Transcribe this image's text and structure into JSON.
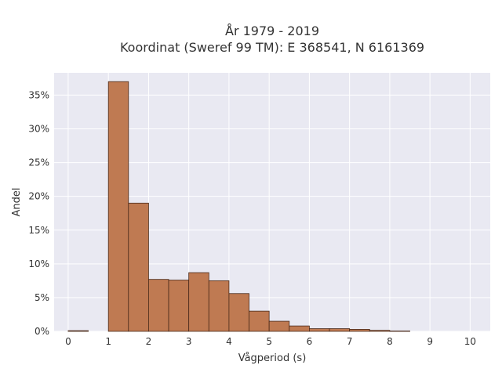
{
  "chart_data": {
    "type": "bar",
    "title": "År 1979 - 2019",
    "subtitle": "Koordinat (Sweref 99 TM): E 368541, N 6161369",
    "xlabel": "Vågperiod (s)",
    "ylabel": "Andel",
    "bin_width": 0.5,
    "xlim": [
      -0.35,
      10.5
    ],
    "ylim": [
      0,
      38.3
    ],
    "xticks": [
      0,
      1,
      2,
      3,
      4,
      5,
      6,
      7,
      8,
      9,
      10
    ],
    "yticks": [
      0,
      5,
      10,
      15,
      20,
      25,
      30,
      35
    ],
    "ytick_suffix": "%",
    "grid": true,
    "bin_starts": [
      0,
      1,
      1.5,
      2,
      2.5,
      3,
      3.5,
      4,
      4.5,
      5,
      5.5,
      6,
      6.5,
      7,
      7.5,
      8
    ],
    "values": [
      0.1,
      37.0,
      19.0,
      7.7,
      7.6,
      8.7,
      7.5,
      5.6,
      3.0,
      1.5,
      0.8,
      0.4,
      0.4,
      0.3,
      0.15,
      0.05
    ],
    "bar_color": "#bf7a52",
    "edge_color": "#4a2a1a",
    "plot_bg": "#e9e9f2"
  }
}
